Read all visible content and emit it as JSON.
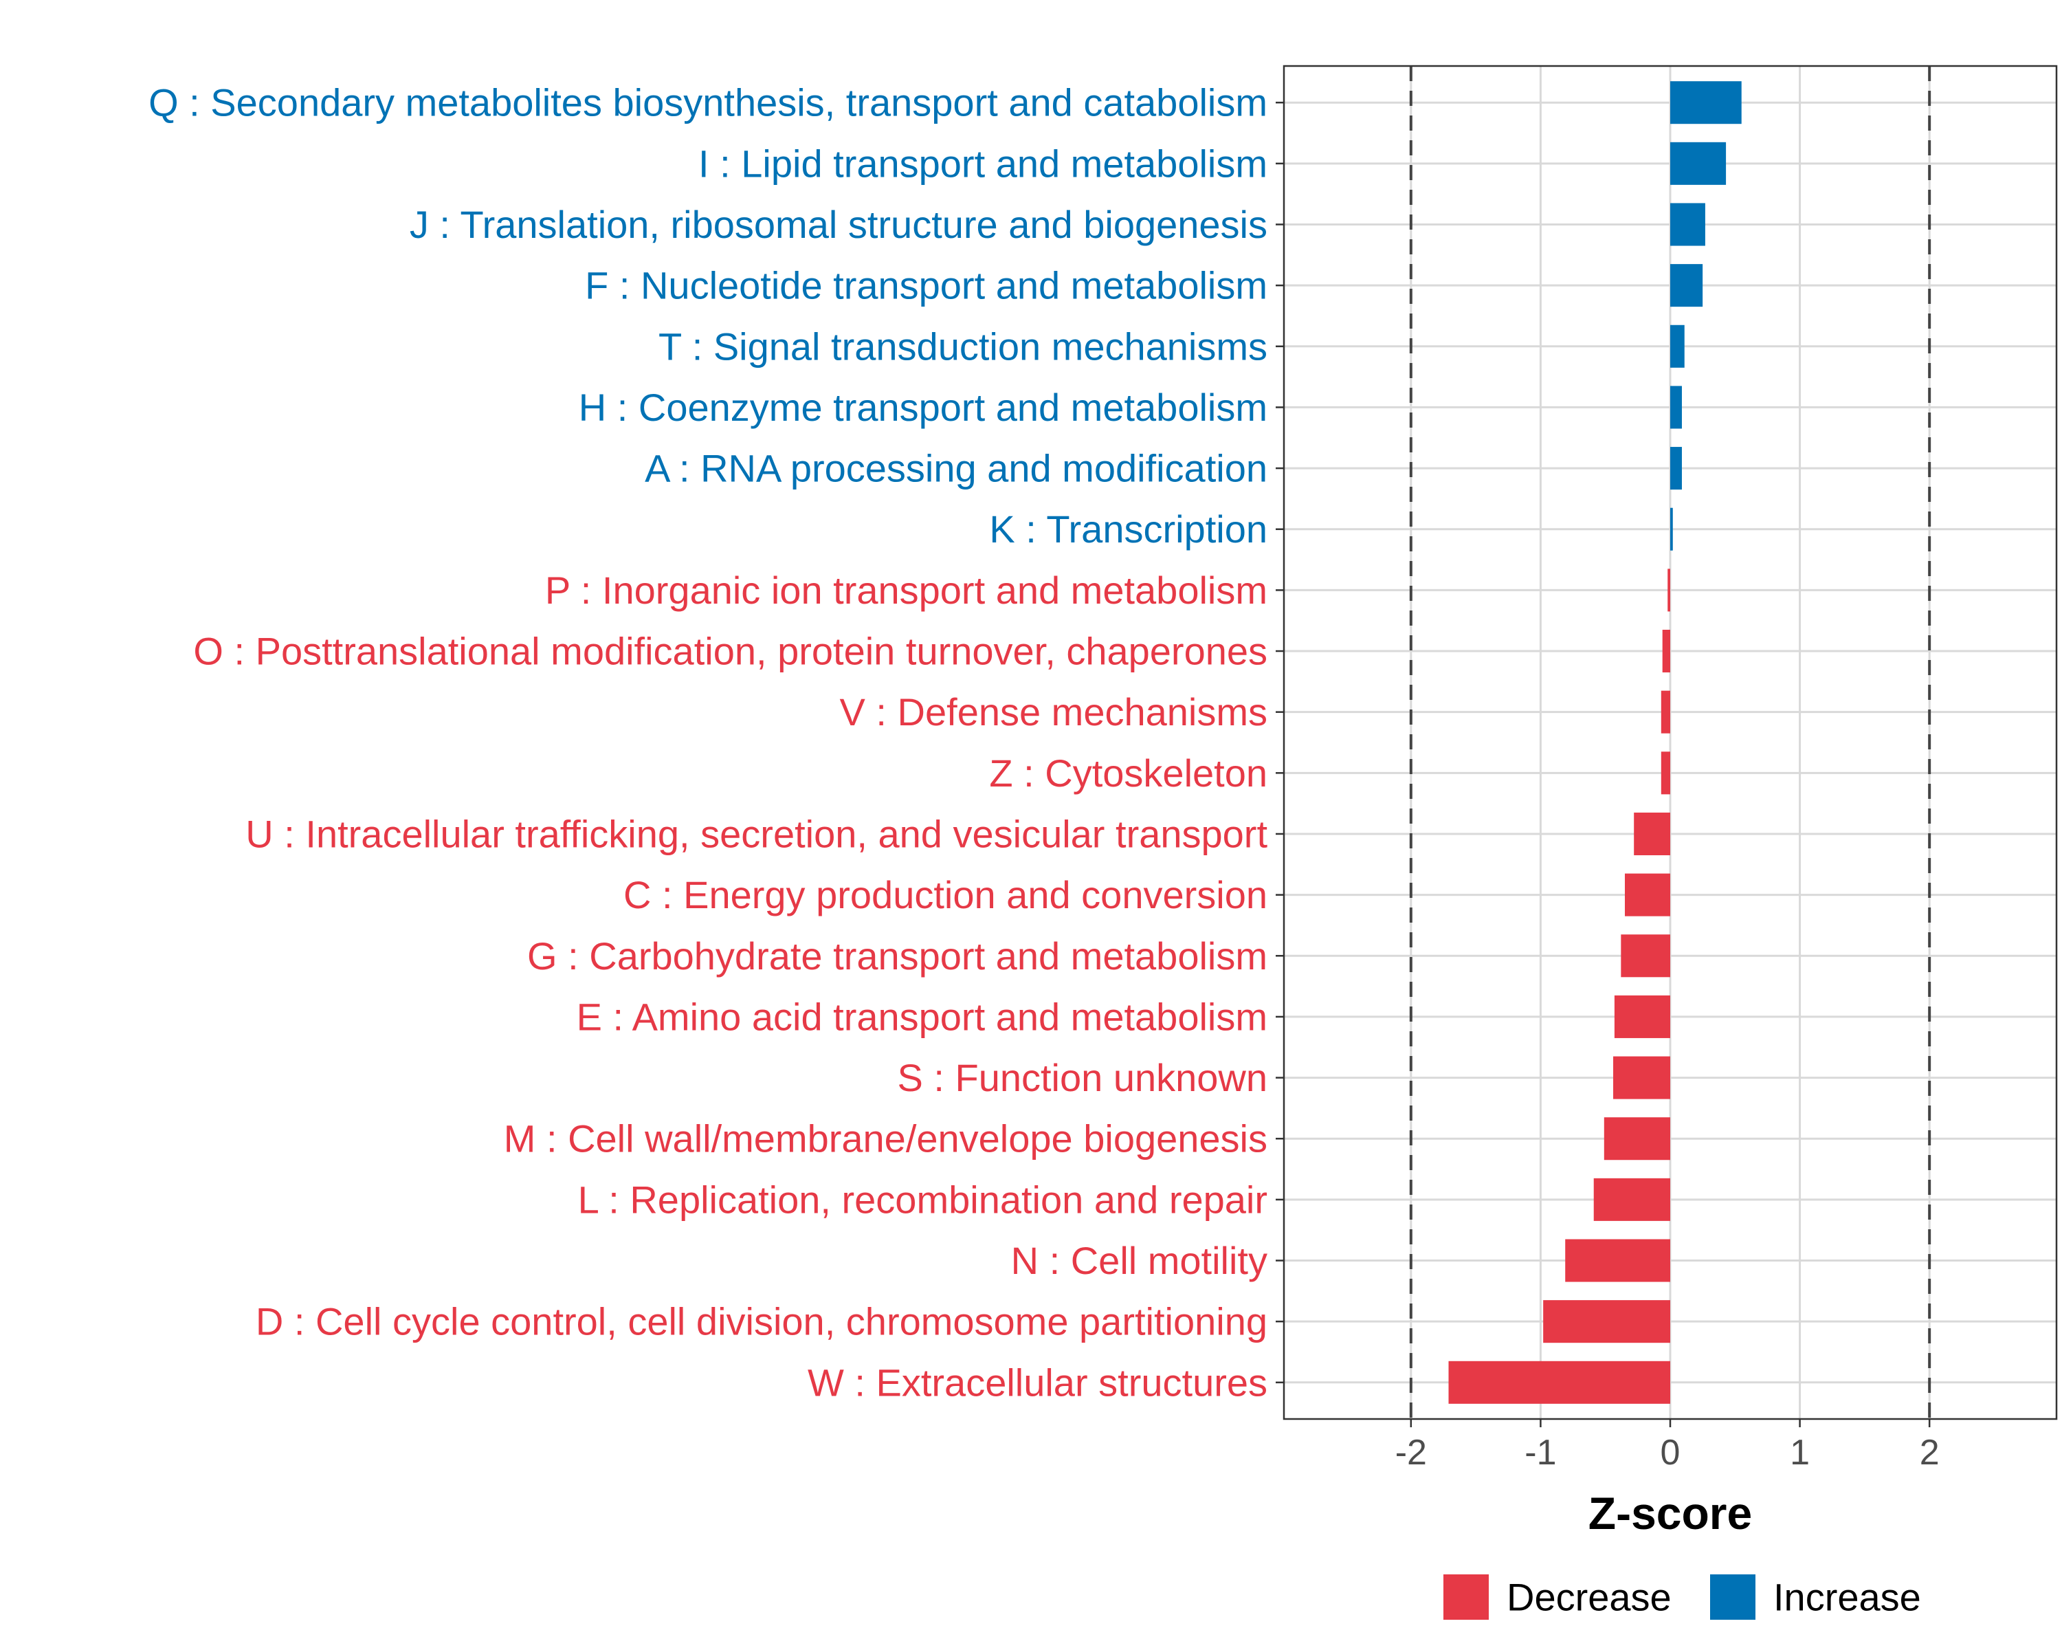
{
  "chart_data": {
    "type": "bar",
    "orientation": "horizontal",
    "xlabel": "Z-score",
    "xlim": [
      -2.98,
      2.98
    ],
    "xticks": [
      -2,
      -1,
      0,
      1,
      2
    ],
    "xtick_labels": [
      "-2",
      "-1",
      "0",
      "1",
      "2"
    ],
    "reference_lines": [
      -2,
      2
    ],
    "grid": true,
    "colors": {
      "Increase": "#0072B5",
      "Decrease": "#E63946"
    },
    "legend": {
      "placement": "bottom",
      "items": [
        {
          "label": "Decrease",
          "color": "#E63946"
        },
        {
          "label": "Increase",
          "color": "#0072B5"
        }
      ]
    },
    "bars": [
      {
        "label": "Q : Secondary metabolites biosynthesis, transport and catabolism",
        "value": 0.55,
        "group": "Increase"
      },
      {
        "label": "I : Lipid transport and metabolism",
        "value": 0.43,
        "group": "Increase"
      },
      {
        "label": "J : Translation, ribosomal structure and biogenesis",
        "value": 0.27,
        "group": "Increase"
      },
      {
        "label": "F : Nucleotide transport and metabolism",
        "value": 0.25,
        "group": "Increase"
      },
      {
        "label": "T : Signal transduction mechanisms",
        "value": 0.11,
        "group": "Increase"
      },
      {
        "label": "H : Coenzyme transport and metabolism",
        "value": 0.09,
        "group": "Increase"
      },
      {
        "label": "A : RNA processing and modification",
        "value": 0.09,
        "group": "Increase"
      },
      {
        "label": "K : Transcription",
        "value": 0.02,
        "group": "Increase"
      },
      {
        "label": "P : Inorganic ion transport and metabolism",
        "value": -0.02,
        "group": "Decrease"
      },
      {
        "label": "O : Posttranslational modification, protein turnover, chaperones",
        "value": -0.06,
        "group": "Decrease"
      },
      {
        "label": "V : Defense mechanisms",
        "value": -0.07,
        "group": "Decrease"
      },
      {
        "label": "Z : Cytoskeleton",
        "value": -0.07,
        "group": "Decrease"
      },
      {
        "label": "U : Intracellular trafficking, secretion, and vesicular transport",
        "value": -0.28,
        "group": "Decrease"
      },
      {
        "label": "C : Energy production and conversion",
        "value": -0.35,
        "group": "Decrease"
      },
      {
        "label": "G : Carbohydrate transport and metabolism",
        "value": -0.38,
        "group": "Decrease"
      },
      {
        "label": "E : Amino acid transport and metabolism",
        "value": -0.43,
        "group": "Decrease"
      },
      {
        "label": "S : Function unknown",
        "value": -0.44,
        "group": "Decrease"
      },
      {
        "label": "M : Cell wall/membrane/envelope biogenesis",
        "value": -0.51,
        "group": "Decrease"
      },
      {
        "label": "L : Replication, recombination and repair",
        "value": -0.59,
        "group": "Decrease"
      },
      {
        "label": "N : Cell motility",
        "value": -0.81,
        "group": "Decrease"
      },
      {
        "label": "D : Cell cycle control, cell division, chromosome partitioning",
        "value": -0.98,
        "group": "Decrease"
      },
      {
        "label": "W : Extracellular structures",
        "value": -1.71,
        "group": "Decrease"
      }
    ]
  }
}
